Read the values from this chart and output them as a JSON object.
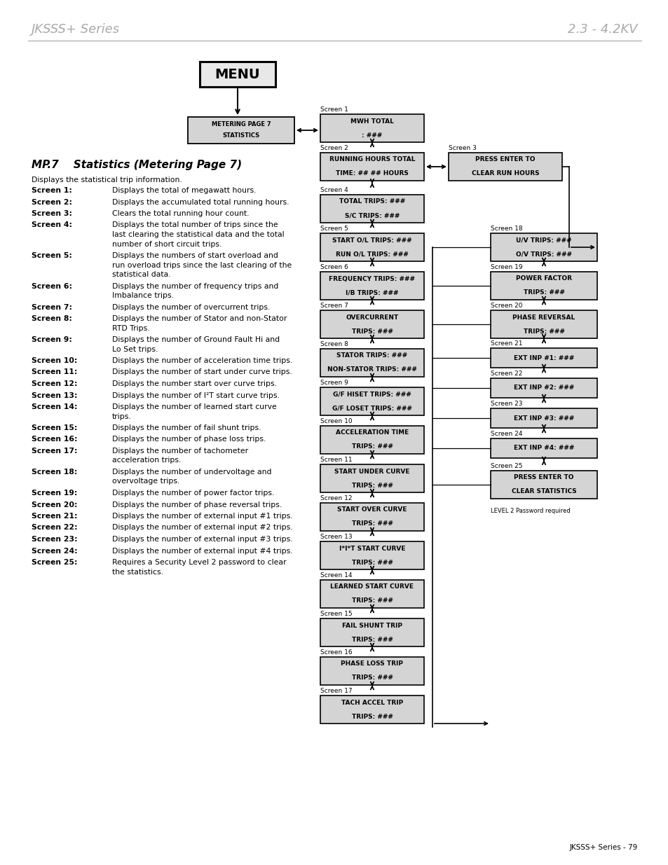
{
  "title_left": "JKSSS+ Series",
  "title_right": "2.3 - 4.2KV",
  "page_number": "JKSSS+ Series - 79",
  "section_title": "MP.7    Statistics (Metering Page 7)",
  "intro_text": "Displays the statistical trip information.",
  "screen_descriptions": [
    [
      "Screen 1:",
      "Displays the total of megawatt hours."
    ],
    [
      "Screen 2:",
      "Displays the accumulated total running hours."
    ],
    [
      "Screen 3:",
      "Clears the total running hour count."
    ],
    [
      "Screen 4:",
      "Displays the total number of trips since the\nlast clearing the statistical data and the total\nnumber of short circuit trips."
    ],
    [
      "Screen 5:",
      "Displays the numbers of start overload and\nrun overload trips since the last clearing of the\nstatistical data."
    ],
    [
      "Screen 6:",
      "Displays the number of frequency trips and\nImbalance trips."
    ],
    [
      "Screen 7:",
      "Displays the number of overcurrent trips."
    ],
    [
      "Screen 8:",
      "Displays the number of Stator and non-Stator\nRTD Trips."
    ],
    [
      "Screen 9:",
      "Displays the number of Ground Fault Hi and\nLo Set trips."
    ],
    [
      "Screen 10:",
      "Displays the number of acceleration time trips."
    ],
    [
      "Screen 11:",
      "Displays the number of start under curve trips."
    ],
    [
      "Screen 12:",
      "Displays the number start over curve trips."
    ],
    [
      "Screen 13:",
      "Displays the number of I²T start curve trips."
    ],
    [
      "Screen 14:",
      "Displays the number of learned start curve\ntrips."
    ],
    [
      "Screen 15:",
      "Displays the number of fail shunt trips."
    ],
    [
      "Screen 16:",
      "Displays the number of phase loss trips."
    ],
    [
      "Screen 17:",
      "Displays the number of tachometer\nacceleration trips."
    ],
    [
      "Screen 18:",
      "Displays the number of undervoltage and\novervoltage trips."
    ],
    [
      "Screen 19:",
      "Displays the number of power factor trips."
    ],
    [
      "Screen 20:",
      "Displays the number of phase reversal trips."
    ],
    [
      "Screen 21:",
      "Displays the number of external input #1 trips."
    ],
    [
      "Screen 22:",
      "Displays the number of external input #2 trips."
    ],
    [
      "Screen 23:",
      "Displays the number of external input #3 trips."
    ],
    [
      "Screen 24:",
      "Displays the number of external input #4 trips."
    ],
    [
      "Screen 25:",
      "Requires a Security Level 2 password to clear\nthe statistics."
    ]
  ],
  "bg_color": "#ffffff",
  "header_color": "#aaaaaa",
  "box_face_dark": "#cccccc",
  "box_face_light": "#e0e0e0",
  "box_edge": "#000000"
}
